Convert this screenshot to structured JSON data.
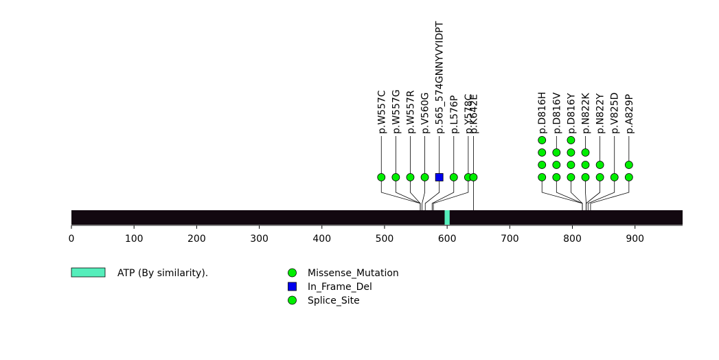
{
  "chart_data": {
    "type": "lollipop",
    "protein_length": 976,
    "axis": {
      "xlim": [
        0,
        976
      ],
      "ticks": [
        0,
        100,
        200,
        300,
        400,
        500,
        600,
        700,
        800,
        900
      ]
    },
    "colors": {
      "backbone": "#120810",
      "domain": "#55EEBB",
      "missense": "#00EE00",
      "inframe": "#0000EE",
      "splice": "#00EE00",
      "stroke": "#000000"
    },
    "domains": [
      {
        "label": "ATP (By similarity).",
        "start": 596,
        "end": 604
      }
    ],
    "mutations": [
      {
        "label": "p.W557C",
        "position": 557,
        "count": 1,
        "type": "missense"
      },
      {
        "label": "p.W557G",
        "position": 557,
        "count": 1,
        "type": "missense"
      },
      {
        "label": "p.W557R",
        "position": 557,
        "count": 1,
        "type": "missense"
      },
      {
        "label": "p.V560G",
        "position": 560,
        "count": 1,
        "type": "missense"
      },
      {
        "label": "p.565_574GNNYVYIDPT",
        "position": 565,
        "count": 1,
        "type": "inframe"
      },
      {
        "label": "p.L576P",
        "position": 576,
        "count": 1,
        "type": "missense"
      },
      {
        "label": "p.Y578C",
        "position": 578,
        "count": 1,
        "type": "missense"
      },
      {
        "label": "p.K642E",
        "position": 642,
        "count": 1,
        "type": "missense"
      },
      {
        "label": "p.D816H",
        "position": 816,
        "count": 4,
        "type": "missense"
      },
      {
        "label": "p.D816V",
        "position": 816,
        "count": 3,
        "type": "missense"
      },
      {
        "label": "p.D816Y",
        "position": 816,
        "count": 4,
        "type": "missense"
      },
      {
        "label": "p.N822K",
        "position": 822,
        "count": 3,
        "type": "missense"
      },
      {
        "label": "p.N822Y",
        "position": 822,
        "count": 2,
        "type": "missense"
      },
      {
        "label": "p.V825D",
        "position": 825,
        "count": 1,
        "type": "missense"
      },
      {
        "label": "p.A829P",
        "position": 829,
        "count": 2,
        "type": "missense"
      }
    ],
    "legend": {
      "domain_label": "ATP (By similarity).",
      "types": [
        {
          "label": "Missense_Mutation",
          "shape": "circle",
          "colorKey": "missense"
        },
        {
          "label": "In_Frame_Del",
          "shape": "square",
          "colorKey": "inframe"
        },
        {
          "label": "Splice_Site",
          "shape": "circle",
          "colorKey": "splice"
        }
      ]
    }
  }
}
